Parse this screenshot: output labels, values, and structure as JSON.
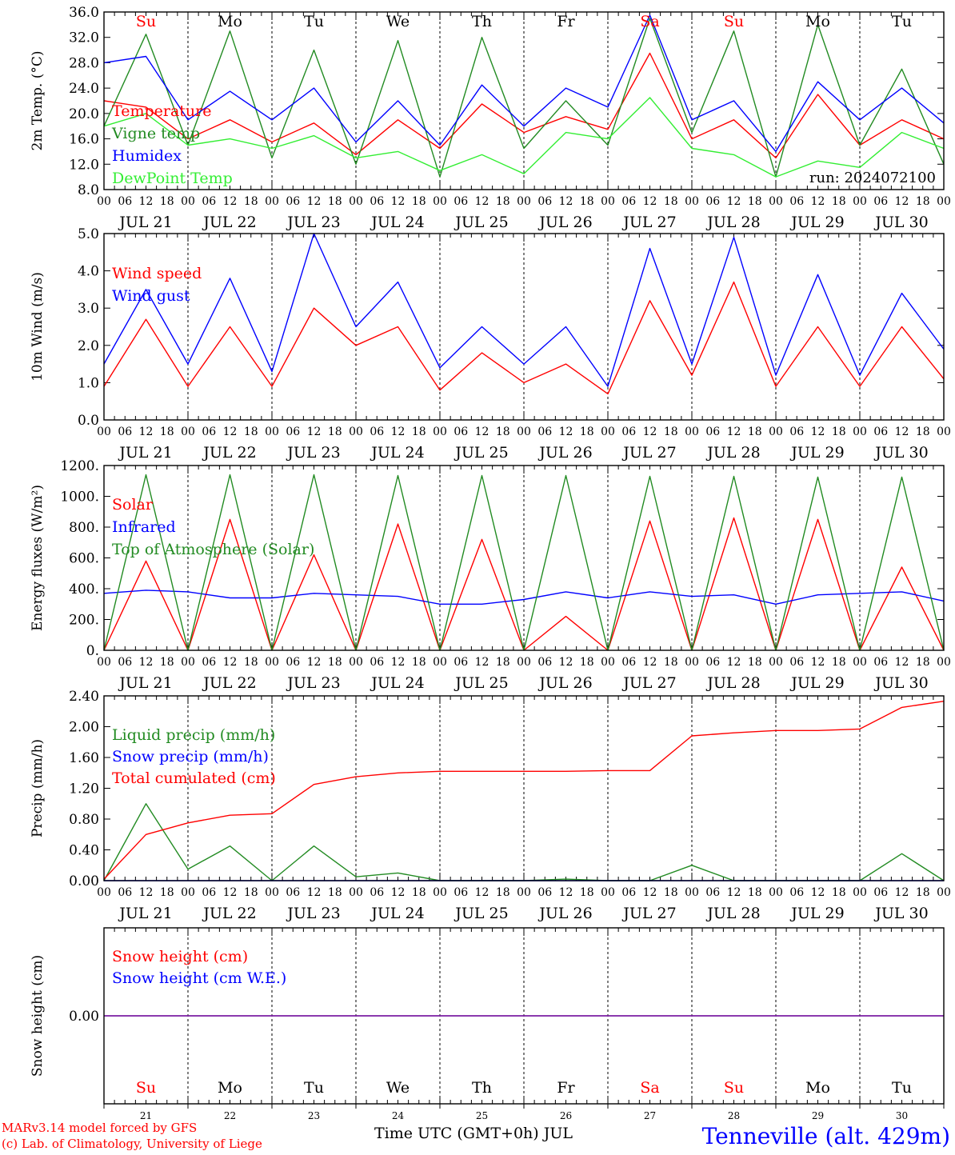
{
  "colors": {
    "red": "#ff0000",
    "green": "#228b22",
    "blue": "#0000ff",
    "lightgreen": "#33ee33",
    "purple": "#7b1fa2",
    "frame": "#000000"
  },
  "time_axis": {
    "hour_labels": [
      "00",
      "06",
      "12",
      "18"
    ],
    "final_label": "00",
    "date_labels": [
      "JUL 21",
      "JUL 22",
      "JUL 23",
      "JUL 24",
      "JUL 25",
      "JUL 26",
      "JUL 27",
      "JUL 28",
      "JUL 29",
      "JUL 30"
    ],
    "weekdays": [
      "Su",
      "Mo",
      "Tu",
      "We",
      "Th",
      "Fr",
      "Sa",
      "Su",
      "Mo",
      "Tu"
    ],
    "weekday_colors": [
      "red",
      "black",
      "black",
      "black",
      "black",
      "black",
      "red",
      "red",
      "black",
      "black"
    ],
    "day_numbers": [
      "21",
      "22",
      "23",
      "24",
      "25",
      "26",
      "27",
      "28",
      "29",
      "30"
    ],
    "month_label": "Time UTC (GMT+0h) JUL"
  },
  "footer": {
    "credit_line1": "MARv3.14 model forced by GFS",
    "credit_line2": "(c) Lab. of Climatology, University of Liege",
    "location": "Tenneville (alt. 429m)"
  },
  "chart_data": [
    {
      "type": "line",
      "ylabel": "2m Temp. (°C)",
      "ylim": [
        8.0,
        36.0
      ],
      "yticks": [
        "8.0",
        "12.0",
        "16.0",
        "20.0",
        "24.0",
        "28.0",
        "32.0",
        "36.0"
      ],
      "annotation": "run: 2024072100",
      "x_hours": [
        0,
        12,
        24,
        36,
        48,
        60,
        72,
        84,
        96,
        108,
        120,
        132,
        144,
        156,
        168,
        180,
        192,
        204,
        216,
        228,
        240
      ],
      "series": [
        {
          "name": "Temperature",
          "color": "red",
          "values": [
            22,
            21,
            16,
            19,
            15.5,
            18.5,
            13.5,
            19,
            14.5,
            21.5,
            17,
            19.5,
            17.5,
            29.5,
            16,
            19,
            13,
            23,
            15,
            19,
            16
          ]
        },
        {
          "name": "Vigne temp",
          "color": "green",
          "values": [
            18,
            32.5,
            15,
            33,
            13,
            30,
            12,
            31.5,
            10,
            32,
            14.5,
            22,
            15,
            35,
            17,
            33,
            10,
            34,
            15,
            27,
            12
          ]
        },
        {
          "name": "Humidex",
          "color": "blue",
          "values": [
            28,
            29,
            19,
            23.5,
            19,
            24,
            15.5,
            22,
            15,
            24.5,
            18,
            24,
            21,
            35.5,
            19,
            22,
            14,
            25,
            19,
            24,
            18.5
          ]
        },
        {
          "name": "DewPoint Temp",
          "color": "lightgreen",
          "values": [
            18,
            20,
            15,
            16,
            14.5,
            16.5,
            13,
            14,
            11,
            13.5,
            10.5,
            17,
            16,
            22.5,
            14.5,
            13.5,
            10,
            12.5,
            11.5,
            17,
            14.5
          ]
        }
      ]
    },
    {
      "type": "line",
      "ylabel": "10m Wind (m/s)",
      "ylim": [
        0.0,
        5.0
      ],
      "yticks": [
        "0.0",
        "1.0",
        "2.0",
        "3.0",
        "4.0",
        "5.0"
      ],
      "x_hours": [
        0,
        12,
        24,
        36,
        48,
        60,
        72,
        84,
        96,
        108,
        120,
        132,
        144,
        156,
        168,
        180,
        192,
        204,
        216,
        228,
        240
      ],
      "series": [
        {
          "name": "Wind speed",
          "color": "red",
          "values": [
            0.9,
            2.7,
            0.9,
            2.5,
            0.9,
            3.0,
            2.0,
            2.5,
            0.8,
            1.8,
            1.0,
            1.5,
            0.7,
            3.2,
            1.2,
            3.7,
            0.9,
            2.5,
            0.9,
            2.5,
            1.1
          ]
        },
        {
          "name": "Wind gust",
          "color": "blue",
          "values": [
            1.5,
            3.5,
            1.5,
            3.8,
            1.3,
            5.0,
            2.5,
            3.7,
            1.4,
            2.5,
            1.5,
            2.5,
            0.9,
            4.6,
            1.5,
            4.9,
            1.2,
            3.9,
            1.2,
            3.4,
            1.9
          ]
        }
      ]
    },
    {
      "type": "line",
      "ylabel": "Energy fluxes (W/m²)",
      "ylim": [
        0,
        1200
      ],
      "yticks": [
        "0.",
        "200.",
        "400.",
        "600.",
        "800.",
        "1000.",
        "1200."
      ],
      "x_hours": [
        0,
        12,
        24,
        36,
        48,
        60,
        72,
        84,
        96,
        108,
        120,
        132,
        144,
        156,
        168,
        180,
        192,
        204,
        216,
        228,
        240
      ],
      "series": [
        {
          "name": "Solar",
          "color": "red",
          "values": [
            0,
            580,
            0,
            850,
            0,
            620,
            0,
            820,
            0,
            720,
            0,
            220,
            0,
            840,
            0,
            860,
            0,
            850,
            0,
            540,
            0
          ]
        },
        {
          "name": "Infrared",
          "color": "blue",
          "values": [
            370,
            390,
            380,
            340,
            340,
            370,
            360,
            350,
            300,
            300,
            330,
            380,
            340,
            380,
            350,
            360,
            300,
            360,
            370,
            380,
            320
          ]
        },
        {
          "name": "Top of Atmosphere (Solar)",
          "color": "green",
          "values": [
            0,
            1140,
            0,
            1140,
            0,
            1140,
            0,
            1135,
            0,
            1135,
            0,
            1135,
            0,
            1130,
            0,
            1130,
            0,
            1125,
            0,
            1125,
            0
          ]
        }
      ]
    },
    {
      "type": "line",
      "ylabel": "Precip (mm/h)",
      "ylim": [
        0.0,
        2.4
      ],
      "yticks": [
        "0.00",
        "0.40",
        "0.80",
        "1.20",
        "1.60",
        "2.00",
        "2.40"
      ],
      "x_hours": [
        0,
        12,
        24,
        36,
        48,
        60,
        72,
        84,
        96,
        108,
        120,
        132,
        144,
        156,
        168,
        180,
        192,
        204,
        216,
        228,
        240
      ],
      "series": [
        {
          "name": "Liquid precip (mm/h)",
          "color": "green",
          "values": [
            0,
            1.0,
            0.15,
            0.45,
            0,
            0.45,
            0.05,
            0.1,
            0,
            0,
            0,
            0.02,
            0,
            0,
            0.2,
            0,
            0,
            0,
            0,
            0.35,
            0
          ]
        },
        {
          "name": "Snow precip (mm/h)",
          "color": "blue",
          "values": [
            0,
            0,
            0,
            0,
            0,
            0,
            0,
            0,
            0,
            0,
            0,
            0,
            0,
            0,
            0,
            0,
            0,
            0,
            0,
            0,
            0
          ]
        },
        {
          "name": "Total cumulated (cm)",
          "color": "red",
          "values": [
            0.02,
            0.6,
            0.75,
            0.85,
            0.87,
            1.25,
            1.35,
            1.4,
            1.42,
            1.42,
            1.42,
            1.42,
            1.43,
            1.43,
            1.88,
            1.92,
            1.95,
            1.95,
            1.97,
            2.25,
            2.33
          ]
        }
      ]
    },
    {
      "type": "line",
      "ylabel": "Snow height (cm)",
      "ylim": [
        -1.0,
        1.0
      ],
      "yticks": [
        "0.00"
      ],
      "x_hours": [
        0,
        240
      ],
      "series": [
        {
          "name": "Snow height (cm)",
          "color": "red",
          "values": [
            0,
            0
          ]
        },
        {
          "name": "Snow height (cm W.E.)",
          "color": "blue",
          "values": [
            0,
            0
          ]
        }
      ]
    }
  ]
}
